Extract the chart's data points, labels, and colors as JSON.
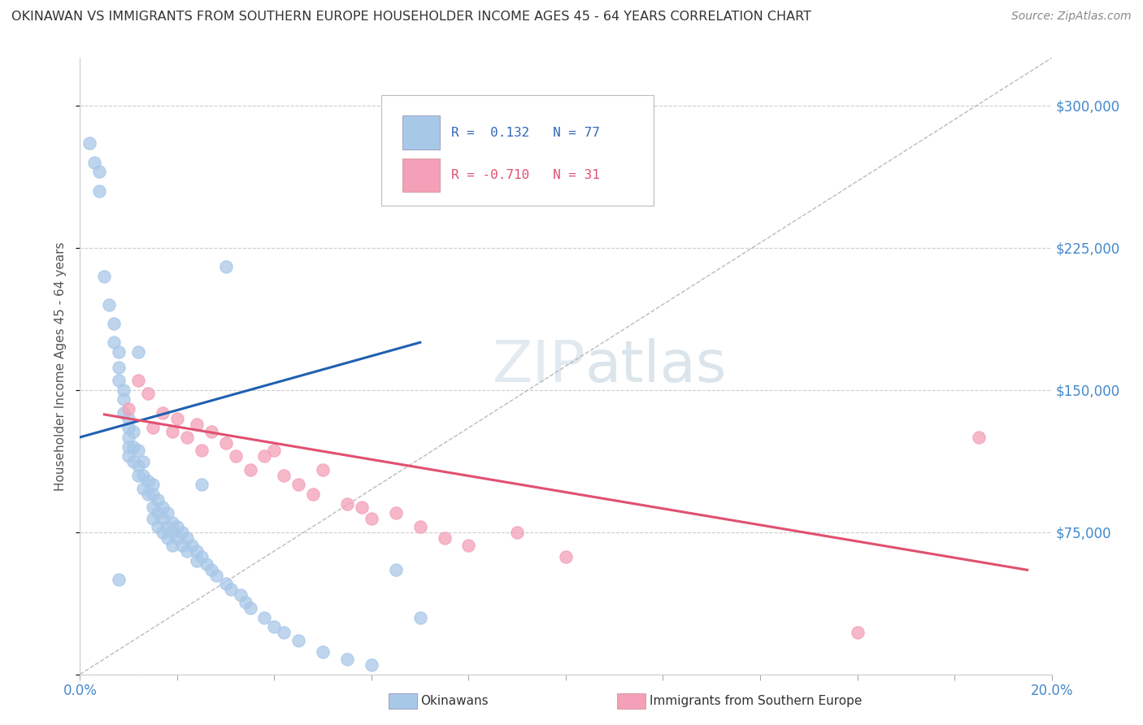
{
  "title": "OKINAWAN VS IMMIGRANTS FROM SOUTHERN EUROPE HOUSEHOLDER INCOME AGES 45 - 64 YEARS CORRELATION CHART",
  "source": "Source: ZipAtlas.com",
  "ylabel": "Householder Income Ages 45 - 64 years",
  "xlim": [
    0.0,
    0.2
  ],
  "ylim": [
    0,
    325000
  ],
  "yticks": [
    0,
    75000,
    150000,
    225000,
    300000
  ],
  "ytick_labels": [
    "",
    "$75,000",
    "$150,000",
    "$225,000",
    "$300,000"
  ],
  "r_okinawan": 0.132,
  "n_okinawan": 77,
  "r_southern_europe": -0.71,
  "n_southern_europe": 31,
  "okinawan_color": "#a8c8e8",
  "southern_europe_color": "#f4a0b8",
  "okinawan_line_color": "#2060b0",
  "southern_europe_line_color": "#e05070",
  "okinawan_x": [
    0.002,
    0.003,
    0.004,
    0.004,
    0.005,
    0.006,
    0.007,
    0.007,
    0.008,
    0.008,
    0.008,
    0.009,
    0.009,
    0.009,
    0.01,
    0.01,
    0.01,
    0.01,
    0.01,
    0.011,
    0.011,
    0.011,
    0.012,
    0.012,
    0.012,
    0.013,
    0.013,
    0.013,
    0.014,
    0.014,
    0.015,
    0.015,
    0.015,
    0.015,
    0.016,
    0.016,
    0.016,
    0.017,
    0.017,
    0.017,
    0.018,
    0.018,
    0.018,
    0.019,
    0.019,
    0.019,
    0.02,
    0.02,
    0.021,
    0.021,
    0.022,
    0.022,
    0.023,
    0.024,
    0.024,
    0.025,
    0.026,
    0.027,
    0.028,
    0.03,
    0.031,
    0.033,
    0.034,
    0.035,
    0.038,
    0.04,
    0.042,
    0.045,
    0.05,
    0.055,
    0.06,
    0.065,
    0.07,
    0.03,
    0.025,
    0.012,
    0.008
  ],
  "okinawan_y": [
    280000,
    270000,
    265000,
    255000,
    210000,
    195000,
    185000,
    175000,
    170000,
    162000,
    155000,
    150000,
    145000,
    138000,
    135000,
    130000,
    125000,
    120000,
    115000,
    128000,
    120000,
    112000,
    118000,
    110000,
    105000,
    112000,
    105000,
    98000,
    102000,
    95000,
    100000,
    95000,
    88000,
    82000,
    92000,
    85000,
    78000,
    88000,
    82000,
    75000,
    85000,
    78000,
    72000,
    80000,
    75000,
    68000,
    78000,
    72000,
    75000,
    68000,
    72000,
    65000,
    68000,
    65000,
    60000,
    62000,
    58000,
    55000,
    52000,
    48000,
    45000,
    42000,
    38000,
    35000,
    30000,
    25000,
    22000,
    18000,
    12000,
    8000,
    5000,
    55000,
    30000,
    215000,
    100000,
    170000,
    50000
  ],
  "southern_europe_x": [
    0.01,
    0.012,
    0.014,
    0.015,
    0.017,
    0.019,
    0.02,
    0.022,
    0.024,
    0.025,
    0.027,
    0.03,
    0.032,
    0.035,
    0.038,
    0.04,
    0.042,
    0.045,
    0.048,
    0.05,
    0.055,
    0.058,
    0.06,
    0.065,
    0.07,
    0.075,
    0.08,
    0.09,
    0.1,
    0.16,
    0.185
  ],
  "southern_europe_y": [
    140000,
    155000,
    148000,
    130000,
    138000,
    128000,
    135000,
    125000,
    132000,
    118000,
    128000,
    122000,
    115000,
    108000,
    115000,
    118000,
    105000,
    100000,
    95000,
    108000,
    90000,
    88000,
    82000,
    85000,
    78000,
    72000,
    68000,
    75000,
    62000,
    22000,
    125000
  ]
}
